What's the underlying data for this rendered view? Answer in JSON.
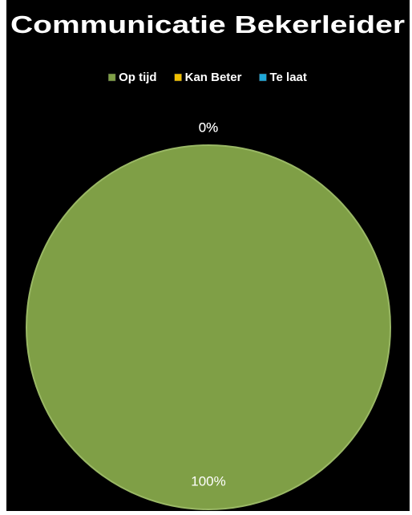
{
  "chart_data": {
    "type": "pie",
    "title": "Communicatie Bekerleider",
    "categories": [
      "Op tijd",
      "Kan Beter",
      "Te laat"
    ],
    "values": [
      100,
      0,
      0
    ],
    "value_labels": [
      "100%",
      "0%",
      "0%"
    ],
    "colors": [
      "#7f9f46",
      "#f0c000",
      "#1fa8d8"
    ],
    "legend": "top"
  }
}
